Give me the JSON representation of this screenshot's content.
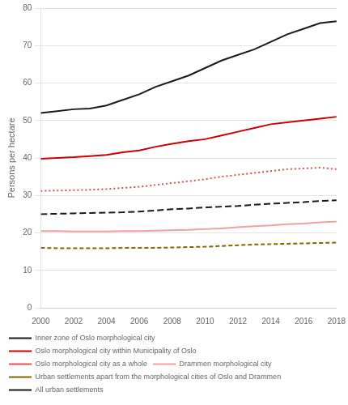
{
  "chart_data": {
    "type": "line",
    "ylabel": "Persons per hectare",
    "x": [
      2000,
      2001,
      2002,
      2003,
      2004,
      2005,
      2006,
      2007,
      2008,
      2009,
      2010,
      2011,
      2012,
      2013,
      2014,
      2015,
      2016,
      2017,
      2018
    ],
    "series": [
      {
        "name": "Inner zone of Oslo morphological city",
        "color": "#1a1a1a",
        "line_style": "solid",
        "values": [
          52,
          52.5,
          53,
          53.2,
          54,
          55.5,
          57,
          59,
          60.5,
          62,
          64,
          66,
          67.5,
          69,
          71,
          73,
          74.5,
          76,
          76.5
        ]
      },
      {
        "name": "Oslo morphological city within Municipality of Oslo",
        "color": "#cc0000",
        "line_style": "solid",
        "values": [
          39.8,
          40.0,
          40.2,
          40.5,
          40.8,
          41.5,
          42.0,
          43.0,
          43.8,
          44.5,
          45.0,
          46.0,
          47.0,
          48.0,
          49.0,
          49.5,
          50.0,
          50.5,
          51.0
        ]
      },
      {
        "name": "Oslo morphological city as a whole",
        "color": "#e05050",
        "line_style": "dotted",
        "values": [
          31.2,
          31.3,
          31.4,
          31.5,
          31.7,
          32.0,
          32.3,
          32.8,
          33.3,
          33.8,
          34.3,
          35.0,
          35.5,
          36.0,
          36.5,
          37.0,
          37.2,
          37.4,
          37.0
        ]
      },
      {
        "name": "Drammen morphological city",
        "color": "#f0a0a0",
        "line_style": "solid",
        "values": [
          20.5,
          20.5,
          20.4,
          20.4,
          20.4,
          20.5,
          20.5,
          20.6,
          20.7,
          20.8,
          21.0,
          21.2,
          21.5,
          21.8,
          22.0,
          22.3,
          22.5,
          22.8,
          23.0
        ]
      },
      {
        "name": "Urban settlements apart from the morphological cities of Oslo and Drammen",
        "color": "#7a6800",
        "line_style": "dashed",
        "values": [
          16.0,
          15.9,
          15.9,
          15.9,
          15.9,
          16.0,
          16.0,
          16.0,
          16.1,
          16.2,
          16.3,
          16.5,
          16.7,
          16.9,
          17.0,
          17.1,
          17.2,
          17.3,
          17.4
        ]
      },
      {
        "name": "All urban settlements",
        "color": "#1a1a1a",
        "line_style": "longdash",
        "values": [
          25.0,
          25.1,
          25.2,
          25.3,
          25.4,
          25.5,
          25.7,
          26.0,
          26.3,
          26.5,
          26.8,
          27.0,
          27.2,
          27.5,
          27.8,
          28.0,
          28.2,
          28.5,
          28.7
        ]
      }
    ],
    "xlim": [
      2000,
      2018
    ],
    "xticks": [
      2000,
      2002,
      2004,
      2006,
      2008,
      2010,
      2012,
      2014,
      2016,
      2018
    ],
    "ylim": [
      0,
      80
    ],
    "yticks": [
      0,
      10,
      20,
      30,
      40,
      50,
      60,
      70,
      80
    ],
    "grid": "y",
    "legend": "bottom"
  }
}
